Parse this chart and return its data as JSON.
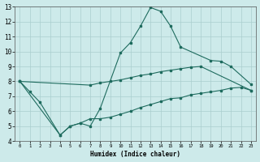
{
  "xlabel": "Humidex (Indice chaleur)",
  "xlim": [
    -0.5,
    23.5
  ],
  "ylim": [
    4,
    13
  ],
  "xticks": [
    0,
    1,
    2,
    3,
    4,
    5,
    6,
    7,
    8,
    9,
    10,
    11,
    12,
    13,
    14,
    15,
    16,
    17,
    18,
    19,
    20,
    21,
    22,
    23
  ],
  "yticks": [
    4,
    5,
    6,
    7,
    8,
    9,
    10,
    11,
    12,
    13
  ],
  "background_color": "#cdeaea",
  "grid_color": "#aacece",
  "line_color": "#1e6b5e",
  "line1_x": [
    0,
    1,
    2,
    4,
    5,
    6,
    7,
    8,
    10,
    11,
    12,
    13,
    14,
    15,
    16,
    19,
    20,
    21,
    23
  ],
  "line1_y": [
    8.0,
    7.3,
    6.6,
    4.4,
    5.0,
    5.2,
    5.0,
    6.2,
    9.9,
    10.6,
    11.7,
    12.95,
    12.7,
    11.7,
    10.3,
    9.4,
    9.35,
    9.0,
    7.8
  ],
  "line2_x": [
    0,
    7,
    8,
    9,
    10,
    11,
    12,
    13,
    14,
    15,
    16,
    17,
    18,
    23
  ],
  "line2_y": [
    8.0,
    7.75,
    7.9,
    8.0,
    8.1,
    8.25,
    8.4,
    8.5,
    8.65,
    8.75,
    8.85,
    8.95,
    9.0,
    7.4
  ],
  "line3_x": [
    0,
    4,
    5,
    6,
    7,
    8,
    9,
    10,
    11,
    12,
    13,
    14,
    15,
    16,
    17,
    18,
    19,
    20,
    21,
    22,
    23
  ],
  "line3_y": [
    8.0,
    4.4,
    5.0,
    5.2,
    5.5,
    5.5,
    5.6,
    5.8,
    6.0,
    6.25,
    6.45,
    6.65,
    6.85,
    6.9,
    7.1,
    7.2,
    7.3,
    7.4,
    7.55,
    7.6,
    7.4
  ]
}
